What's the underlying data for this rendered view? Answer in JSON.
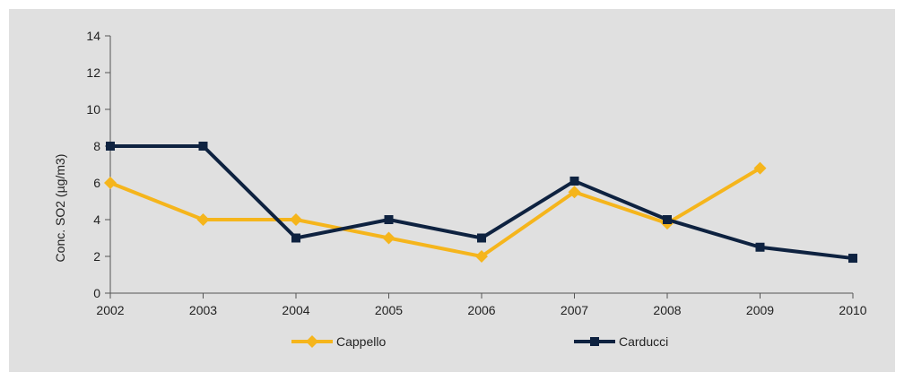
{
  "chart_data": {
    "type": "line",
    "title": "",
    "xlabel": "",
    "ylabel": "Conc. SO2 (µg/m3)",
    "categories": [
      "2002",
      "2003",
      "2004",
      "2005",
      "2006",
      "2007",
      "2008",
      "2009",
      "2010"
    ],
    "ylim": [
      0,
      14
    ],
    "yticks": [
      0,
      2,
      4,
      6,
      8,
      10,
      12,
      14
    ],
    "grid": false,
    "legend_position": "bottom",
    "series": [
      {
        "name": "Cappello",
        "color": "#f5b51c",
        "marker": "diamond",
        "values": [
          6,
          4,
          4,
          3,
          2,
          5.5,
          3.8,
          6.8,
          null
        ]
      },
      {
        "name": "Carducci",
        "color": "#0e2240",
        "marker": "square",
        "values": [
          8,
          8,
          3,
          4,
          3,
          6.1,
          4,
          2.5,
          1.9
        ]
      }
    ]
  }
}
